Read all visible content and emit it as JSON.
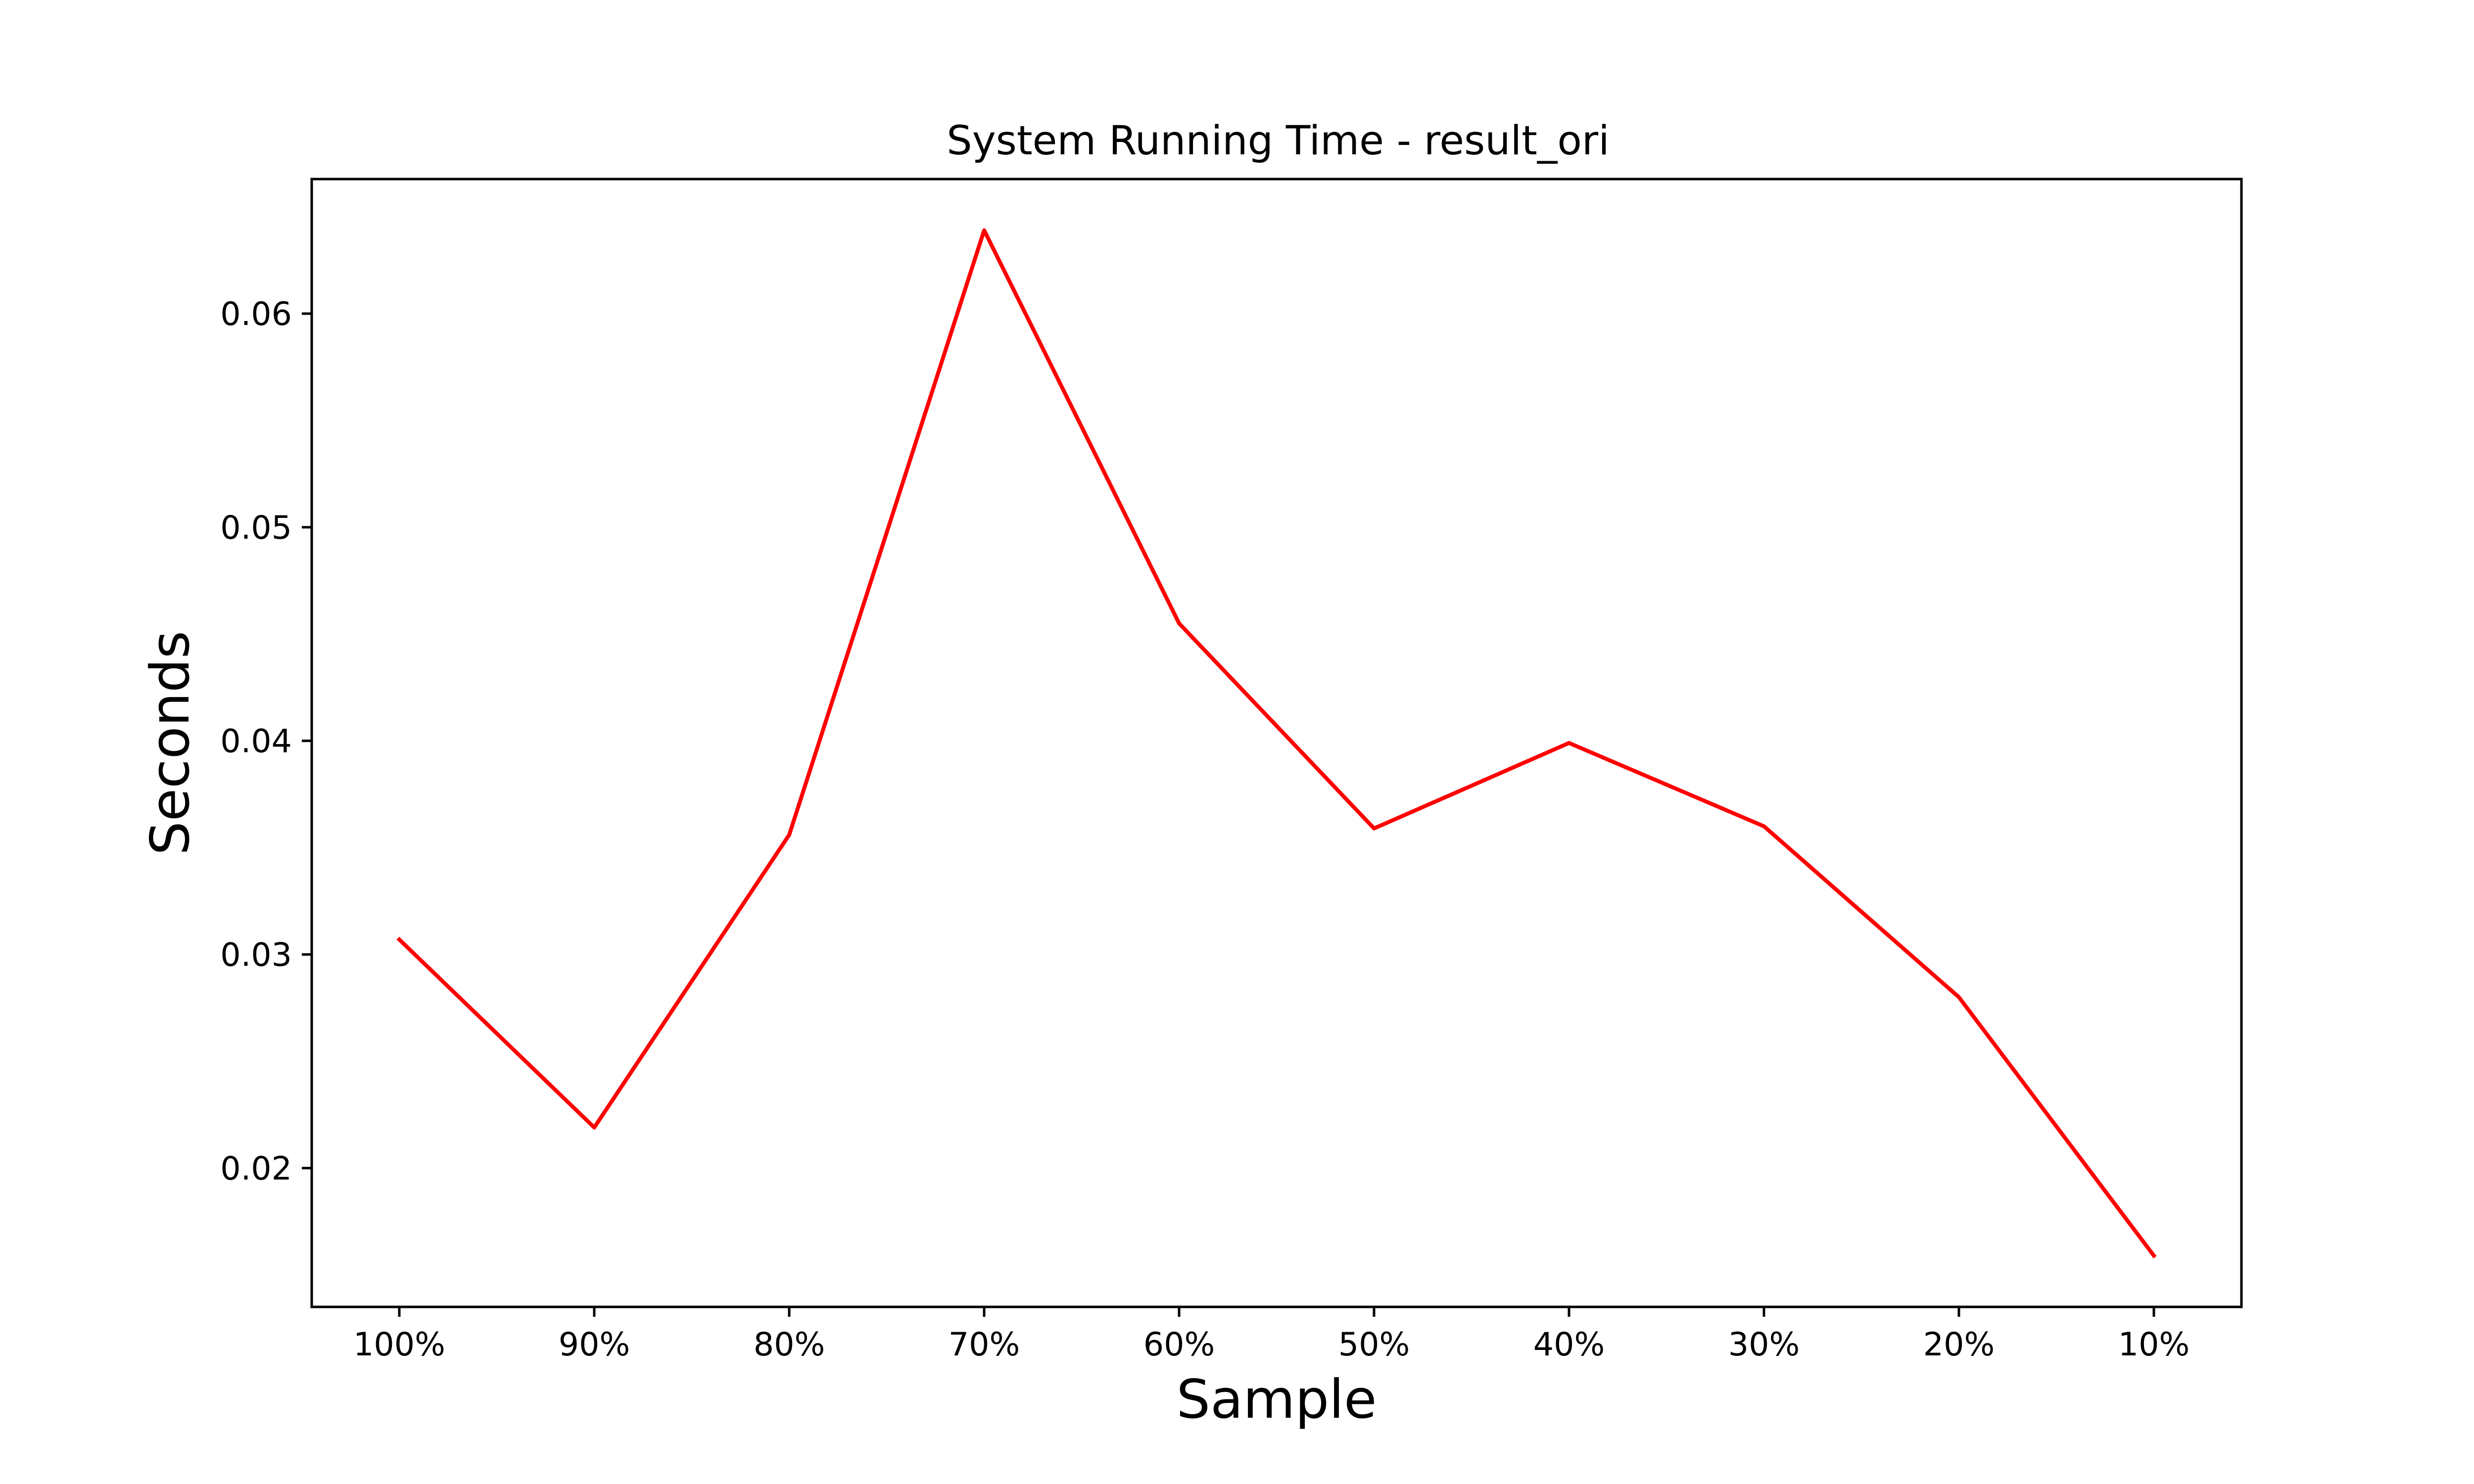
{
  "chart_data": {
    "type": "line",
    "title": "System Running Time - result_ori",
    "xlabel": "Sample",
    "ylabel": "Seconds",
    "categories": [
      "100%",
      "90%",
      "80%",
      "70%",
      "60%",
      "50%",
      "40%",
      "30%",
      "20%",
      "10%"
    ],
    "series": [
      {
        "color": "#ff0000",
        "values": [
          0.0307,
          0.0219,
          0.0356,
          0.0639,
          0.0455,
          0.0359,
          0.0399,
          0.036,
          0.028,
          0.0159
        ]
      }
    ],
    "ylim": [
      0.0135,
      0.0663
    ],
    "yticks": [
      "0.02",
      "0.03",
      "0.04",
      "0.05",
      "0.06"
    ],
    "ytick_values": [
      0.02,
      0.03,
      0.04,
      0.05,
      0.06
    ],
    "grid": false,
    "legend": "none"
  }
}
